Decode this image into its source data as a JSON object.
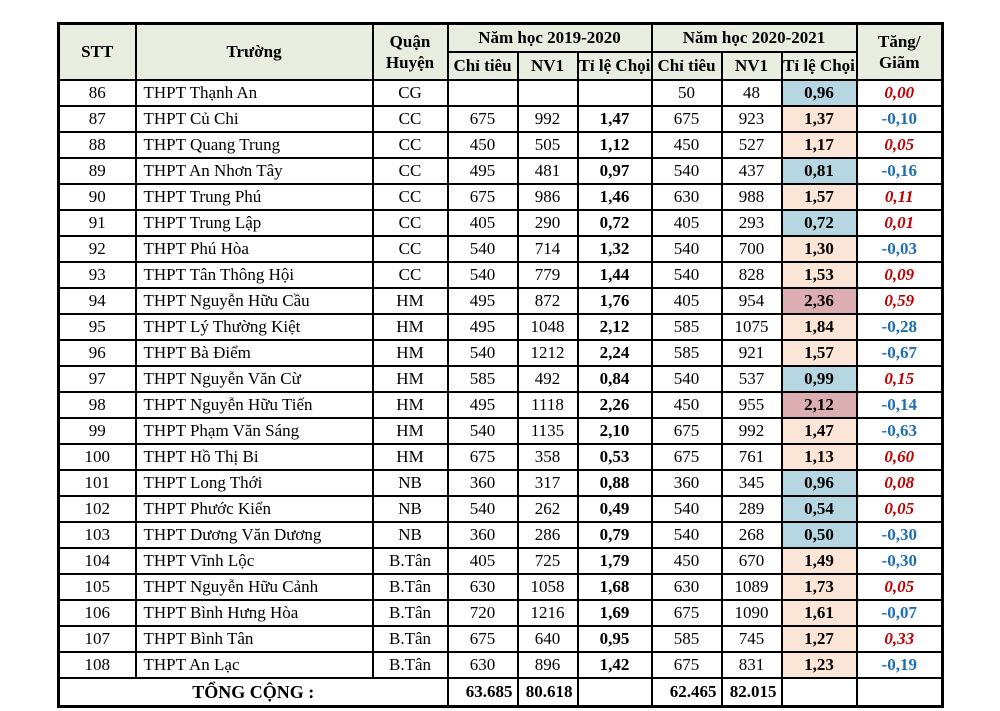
{
  "colors": {
    "header_bg": "#E8EDDF",
    "fill_peach": "#FBE5D6",
    "fill_blue": "#B6D7E2",
    "fill_pink": "#DDAEB1",
    "increase_red": "#C00000",
    "decrease_blue": "#1F6EB3",
    "border": "#000000"
  },
  "table": {
    "header": {
      "stt": "STT",
      "truong": "Trường",
      "quan_huyen": "Quận\nHuyện",
      "year1": "Năm học 2019-2020",
      "year2": "Năm học 2020-2021",
      "chi_tieu": "Chỉ tiêu",
      "nv1": "NV1",
      "ti_le_choi": "Tỉ lệ Chọi",
      "tang_giam": "Tăng/\nGiãm"
    },
    "rows": [
      {
        "stt": "86",
        "truong": "THPT Thạnh An",
        "quan_huyen": "CG",
        "y2019": {
          "chi_tieu": "",
          "nv1": "",
          "ti_le_choi": ""
        },
        "y2020": {
          "chi_tieu": "50",
          "nv1": "48",
          "ti_le_choi": "0,96",
          "fill": "blue"
        },
        "tang_giam": "0,00",
        "tang_giam_color": "red"
      },
      {
        "stt": "87",
        "truong": "THPT Củ Chi",
        "quan_huyen": "CC",
        "y2019": {
          "chi_tieu": "675",
          "nv1": "992",
          "ti_le_choi": "1,47"
        },
        "y2020": {
          "chi_tieu": "675",
          "nv1": "923",
          "ti_le_choi": "1,37",
          "fill": "peach"
        },
        "tang_giam": "-0,10",
        "tang_giam_color": "blue"
      },
      {
        "stt": "88",
        "truong": "THPT Quang Trung",
        "quan_huyen": "CC",
        "y2019": {
          "chi_tieu": "450",
          "nv1": "505",
          "ti_le_choi": "1,12"
        },
        "y2020": {
          "chi_tieu": "450",
          "nv1": "527",
          "ti_le_choi": "1,17",
          "fill": "peach"
        },
        "tang_giam": "0,05",
        "tang_giam_color": "red"
      },
      {
        "stt": "89",
        "truong": "THPT An Nhơn Tây",
        "quan_huyen": "CC",
        "y2019": {
          "chi_tieu": "495",
          "nv1": "481",
          "ti_le_choi": "0,97"
        },
        "y2020": {
          "chi_tieu": "540",
          "nv1": "437",
          "ti_le_choi": "0,81",
          "fill": "blue"
        },
        "tang_giam": "-0,16",
        "tang_giam_color": "blue"
      },
      {
        "stt": "90",
        "truong": "THPT Trung Phú",
        "quan_huyen": "CC",
        "y2019": {
          "chi_tieu": "675",
          "nv1": "986",
          "ti_le_choi": "1,46"
        },
        "y2020": {
          "chi_tieu": "630",
          "nv1": "988",
          "ti_le_choi": "1,57",
          "fill": "peach"
        },
        "tang_giam": "0,11",
        "tang_giam_color": "red"
      },
      {
        "stt": "91",
        "truong": "THPT Trung Lập",
        "quan_huyen": "CC",
        "y2019": {
          "chi_tieu": "405",
          "nv1": "290",
          "ti_le_choi": "0,72"
        },
        "y2020": {
          "chi_tieu": "405",
          "nv1": "293",
          "ti_le_choi": "0,72",
          "fill": "blue"
        },
        "tang_giam": "0,01",
        "tang_giam_color": "red"
      },
      {
        "stt": "92",
        "truong": "THPT Phú Hòa",
        "quan_huyen": "CC",
        "y2019": {
          "chi_tieu": "540",
          "nv1": "714",
          "ti_le_choi": "1,32"
        },
        "y2020": {
          "chi_tieu": "540",
          "nv1": "700",
          "ti_le_choi": "1,30",
          "fill": "peach"
        },
        "tang_giam": "-0,03",
        "tang_giam_color": "blue"
      },
      {
        "stt": "93",
        "truong": "THPT Tân Thông Hội",
        "quan_huyen": "CC",
        "y2019": {
          "chi_tieu": "540",
          "nv1": "779",
          "ti_le_choi": "1,44"
        },
        "y2020": {
          "chi_tieu": "540",
          "nv1": "828",
          "ti_le_choi": "1,53",
          "fill": "peach"
        },
        "tang_giam": "0,09",
        "tang_giam_color": "red"
      },
      {
        "stt": "94",
        "truong": "THPT Nguyễn Hữu Cầu",
        "quan_huyen": "HM",
        "y2019": {
          "chi_tieu": "495",
          "nv1": "872",
          "ti_le_choi": "1,76"
        },
        "y2020": {
          "chi_tieu": "405",
          "nv1": "954",
          "ti_le_choi": "2,36",
          "fill": "pink"
        },
        "tang_giam": "0,59",
        "tang_giam_color": "red"
      },
      {
        "stt": "95",
        "truong": "THPT Lý Thường Kiệt",
        "quan_huyen": "HM",
        "y2019": {
          "chi_tieu": "495",
          "nv1": "1048",
          "ti_le_choi": "2,12"
        },
        "y2020": {
          "chi_tieu": "585",
          "nv1": "1075",
          "ti_le_choi": "1,84",
          "fill": "peach"
        },
        "tang_giam": "-0,28",
        "tang_giam_color": "blue"
      },
      {
        "stt": "96",
        "truong": "THPT Bà Điểm",
        "quan_huyen": "HM",
        "y2019": {
          "chi_tieu": "540",
          "nv1": "1212",
          "ti_le_choi": "2,24"
        },
        "y2020": {
          "chi_tieu": "585",
          "nv1": "921",
          "ti_le_choi": "1,57",
          "fill": "peach"
        },
        "tang_giam": "-0,67",
        "tang_giam_color": "blue"
      },
      {
        "stt": "97",
        "truong": "THPT Nguyễn Văn Cừ",
        "quan_huyen": "HM",
        "y2019": {
          "chi_tieu": "585",
          "nv1": "492",
          "ti_le_choi": "0,84"
        },
        "y2020": {
          "chi_tieu": "540",
          "nv1": "537",
          "ti_le_choi": "0,99",
          "fill": "blue"
        },
        "tang_giam": "0,15",
        "tang_giam_color": "red"
      },
      {
        "stt": "98",
        "truong": "THPT Nguyễn Hữu Tiến",
        "quan_huyen": "HM",
        "y2019": {
          "chi_tieu": "495",
          "nv1": "1118",
          "ti_le_choi": "2,26"
        },
        "y2020": {
          "chi_tieu": "450",
          "nv1": "955",
          "ti_le_choi": "2,12",
          "fill": "pink"
        },
        "tang_giam": "-0,14",
        "tang_giam_color": "blue"
      },
      {
        "stt": "99",
        "truong": "THPT Phạm Văn Sáng",
        "quan_huyen": "HM",
        "y2019": {
          "chi_tieu": "540",
          "nv1": "1135",
          "ti_le_choi": "2,10"
        },
        "y2020": {
          "chi_tieu": "675",
          "nv1": "992",
          "ti_le_choi": "1,47",
          "fill": "peach"
        },
        "tang_giam": "-0,63",
        "tang_giam_color": "blue"
      },
      {
        "stt": "100",
        "truong": "THPT Hồ Thị Bi",
        "quan_huyen": "HM",
        "y2019": {
          "chi_tieu": "675",
          "nv1": "358",
          "ti_le_choi": "0,53"
        },
        "y2020": {
          "chi_tieu": "675",
          "nv1": "761",
          "ti_le_choi": "1,13",
          "fill": "peach"
        },
        "tang_giam": "0,60",
        "tang_giam_color": "red"
      },
      {
        "stt": "101",
        "truong": "THPT Long Thới",
        "quan_huyen": "NB",
        "y2019": {
          "chi_tieu": "360",
          "nv1": "317",
          "ti_le_choi": "0,88"
        },
        "y2020": {
          "chi_tieu": "360",
          "nv1": "345",
          "ti_le_choi": "0,96",
          "fill": "blue"
        },
        "tang_giam": "0,08",
        "tang_giam_color": "red"
      },
      {
        "stt": "102",
        "truong": "THPT Phước Kiển",
        "quan_huyen": "NB",
        "y2019": {
          "chi_tieu": "540",
          "nv1": "262",
          "ti_le_choi": "0,49"
        },
        "y2020": {
          "chi_tieu": "540",
          "nv1": "289",
          "ti_le_choi": "0,54",
          "fill": "blue"
        },
        "tang_giam": "0,05",
        "tang_giam_color": "red"
      },
      {
        "stt": "103",
        "truong": "THPT Dương Văn Dương",
        "quan_huyen": "NB",
        "y2019": {
          "chi_tieu": "360",
          "nv1": "286",
          "ti_le_choi": "0,79"
        },
        "y2020": {
          "chi_tieu": "540",
          "nv1": "268",
          "ti_le_choi": "0,50",
          "fill": "blue"
        },
        "tang_giam": "-0,30",
        "tang_giam_color": "blue"
      },
      {
        "stt": "104",
        "truong": "THPT Vĩnh Lộc",
        "quan_huyen": "B.Tân",
        "y2019": {
          "chi_tieu": "405",
          "nv1": "725",
          "ti_le_choi": "1,79"
        },
        "y2020": {
          "chi_tieu": "450",
          "nv1": "670",
          "ti_le_choi": "1,49",
          "fill": "peach"
        },
        "tang_giam": "-0,30",
        "tang_giam_color": "blue"
      },
      {
        "stt": "105",
        "truong": "THPT Nguyễn Hữu Cảnh",
        "quan_huyen": "B.Tân",
        "y2019": {
          "chi_tieu": "630",
          "nv1": "1058",
          "ti_le_choi": "1,68"
        },
        "y2020": {
          "chi_tieu": "630",
          "nv1": "1089",
          "ti_le_choi": "1,73",
          "fill": "peach"
        },
        "tang_giam": "0,05",
        "tang_giam_color": "red"
      },
      {
        "stt": "106",
        "truong": "THPT Bình Hưng Hòa",
        "quan_huyen": "B.Tân",
        "y2019": {
          "chi_tieu": "720",
          "nv1": "1216",
          "ti_le_choi": "1,69"
        },
        "y2020": {
          "chi_tieu": "675",
          "nv1": "1090",
          "ti_le_choi": "1,61",
          "fill": "peach"
        },
        "tang_giam": "-0,07",
        "tang_giam_color": "blue"
      },
      {
        "stt": "107",
        "truong": "THPT Bình Tân",
        "quan_huyen": "B.Tân",
        "y2019": {
          "chi_tieu": "675",
          "nv1": "640",
          "ti_le_choi": "0,95"
        },
        "y2020": {
          "chi_tieu": "585",
          "nv1": "745",
          "ti_le_choi": "1,27",
          "fill": "peach"
        },
        "tang_giam": "0,33",
        "tang_giam_color": "red"
      },
      {
        "stt": "108",
        "truong": "THPT An Lạc",
        "quan_huyen": "B.Tân",
        "y2019": {
          "chi_tieu": "630",
          "nv1": "896",
          "ti_le_choi": "1,42"
        },
        "y2020": {
          "chi_tieu": "675",
          "nv1": "831",
          "ti_le_choi": "1,23",
          "fill": "peach"
        },
        "tang_giam": "-0,19",
        "tang_giam_color": "blue"
      }
    ],
    "total": {
      "label": "TỔNG CỘNG :",
      "y2019_chi_tieu": "63.685",
      "y2019_nv1": "80.618",
      "y2020_chi_tieu": "62.465",
      "y2020_nv1": "82.015"
    }
  }
}
